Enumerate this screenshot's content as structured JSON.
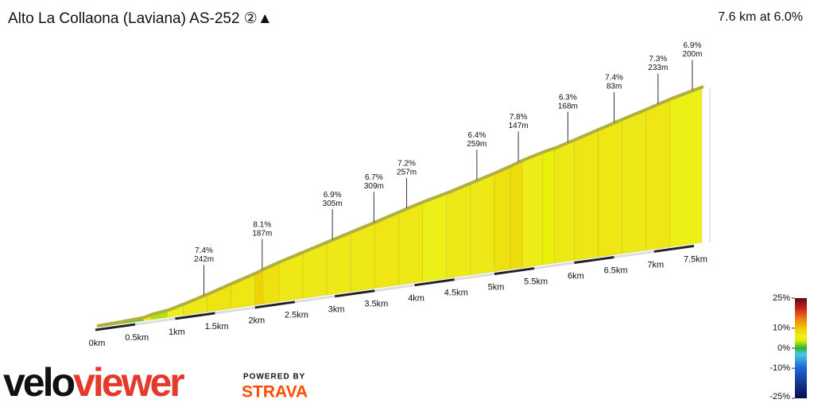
{
  "chart_data": {
    "type": "elevation-profile",
    "title": "Alto La Collaona (Laviana) AS-252 ②▲",
    "subtitle": "7.6 km at 6.0%",
    "x": [
      0,
      0.3,
      0.6,
      0.7,
      0.9,
      1.1,
      1.4,
      1.7,
      2.0,
      2.1,
      2.3,
      2.6,
      2.9,
      3.2,
      3.5,
      3.8,
      4.1,
      4.4,
      4.7,
      5.0,
      5.2,
      5.35,
      5.6,
      5.75,
      6.0,
      6.3,
      6.6,
      6.9,
      7.2,
      7.6
    ],
    "values": [
      0,
      2,
      6,
      12,
      18,
      30,
      50,
      72,
      93,
      102,
      117,
      137,
      157,
      177,
      197,
      218,
      238,
      255,
      275,
      295,
      310,
      322,
      338,
      345,
      362,
      383,
      404,
      424,
      445,
      468
    ],
    "xlim": [
      0,
      7.6
    ],
    "ylim": [
      0,
      470
    ],
    "xticks": [
      {
        "value": 0,
        "label": "0km"
      },
      {
        "value": 0.5,
        "label": "0.5km"
      },
      {
        "value": 1,
        "label": "1km"
      },
      {
        "value": 1.5,
        "label": "1.5km"
      },
      {
        "value": 2,
        "label": "2km"
      },
      {
        "value": 2.5,
        "label": "2.5km"
      },
      {
        "value": 3,
        "label": "3km"
      },
      {
        "value": 3.5,
        "label": "3.5km"
      },
      {
        "value": 4,
        "label": "4km"
      },
      {
        "value": 4.5,
        "label": "4.5km"
      },
      {
        "value": 5,
        "label": "5km"
      },
      {
        "value": 5.5,
        "label": "5.5km"
      },
      {
        "value": 6,
        "label": "6km"
      },
      {
        "value": 6.5,
        "label": "6.5km"
      },
      {
        "value": 7,
        "label": "7km"
      },
      {
        "value": 7.5,
        "label": "7.5km"
      }
    ],
    "annotations": [
      {
        "x": 1.36,
        "gradient": "7.4%",
        "length": "242m"
      },
      {
        "x": 2.09,
        "gradient": "8.1%",
        "length": "187m"
      },
      {
        "x": 2.97,
        "gradient": "6.9%",
        "length": "305m"
      },
      {
        "x": 3.49,
        "gradient": "6.7%",
        "length": "309m"
      },
      {
        "x": 3.9,
        "gradient": "7.2%",
        "length": "257m"
      },
      {
        "x": 4.78,
        "gradient": "6.4%",
        "length": "259m"
      },
      {
        "x": 5.3,
        "gradient": "7.8%",
        "length": "147m"
      },
      {
        "x": 5.92,
        "gradient": "6.3%",
        "length": "168m"
      },
      {
        "x": 6.5,
        "gradient": "7.4%",
        "length": "83m"
      },
      {
        "x": 7.05,
        "gradient": "7.3%",
        "length": "233m"
      },
      {
        "x": 7.48,
        "gradient": "6.9%",
        "length": "200m"
      }
    ],
    "colorscale": {
      "lim": [
        -25,
        25
      ],
      "ticks": [
        {
          "value": 25,
          "label": "25%"
        },
        {
          "value": 10,
          "label": "10%"
        },
        {
          "value": 0,
          "label": "0%"
        },
        {
          "value": -10,
          "label": "-10%"
        },
        {
          "value": -25,
          "label": "-25%"
        }
      ],
      "stops": [
        [
          -25,
          "#0a0a50"
        ],
        [
          -10,
          "#1e64d2"
        ],
        [
          -3,
          "#48c8e6"
        ],
        [
          0,
          "#28b43c"
        ],
        [
          4,
          "#e6f000"
        ],
        [
          6,
          "#eef01a"
        ],
        [
          10,
          "#f0c800"
        ],
        [
          15,
          "#f07814"
        ],
        [
          20,
          "#c81e1e"
        ],
        [
          25,
          "#5a0a0a"
        ]
      ]
    }
  },
  "branding": {
    "logo": [
      "velo",
      "viewer"
    ],
    "powered_by": "POWERED BY",
    "strava": "STRAVA"
  }
}
